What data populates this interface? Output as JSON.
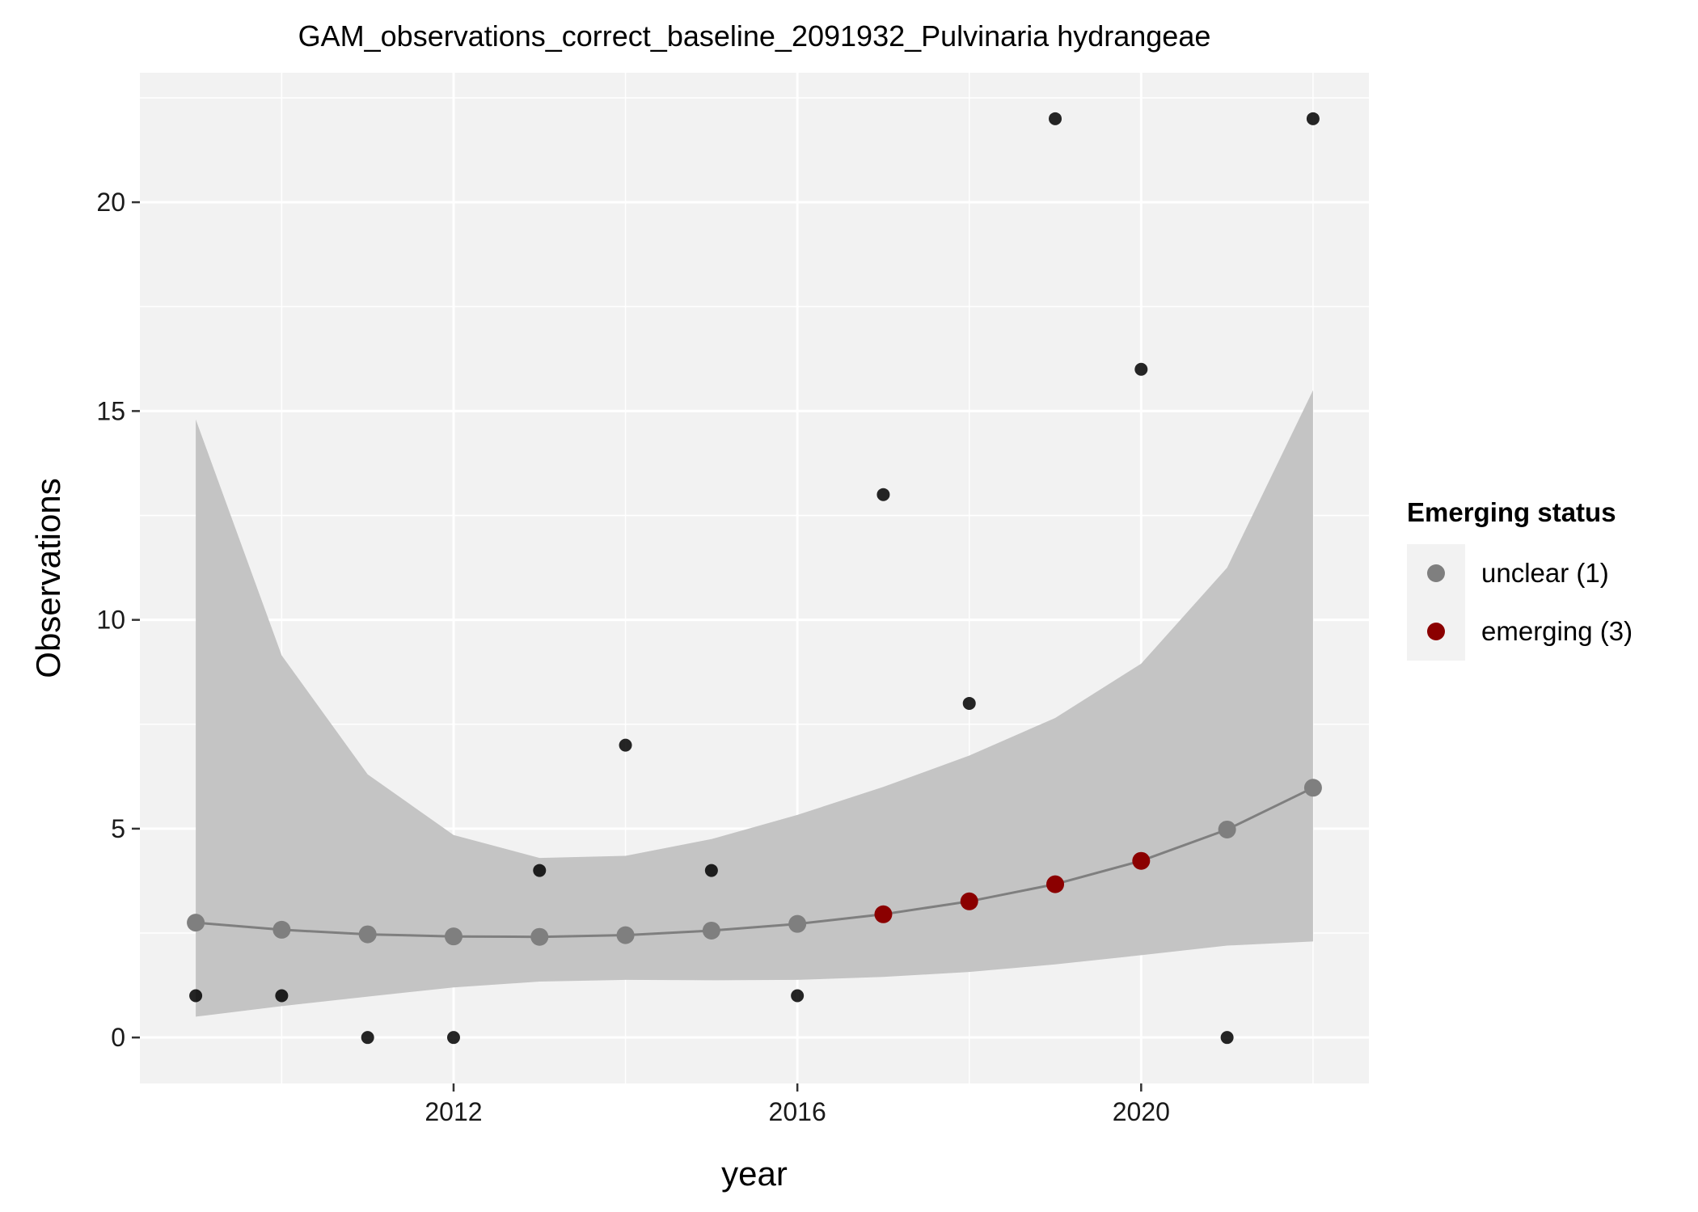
{
  "chart_data": {
    "type": "scatter",
    "title": "GAM_observations_correct_baseline_2091932_Pulvinaria hydrangeae",
    "xlabel": "year",
    "ylabel": "Observations",
    "xlim": [
      2008.35,
      2022.65
    ],
    "ylim": [
      -1.1,
      23.1
    ],
    "x_ticks": [
      2012,
      2016,
      2020
    ],
    "y_ticks": [
      0,
      5,
      10,
      15,
      20
    ],
    "x_tick_labels": [
      "2012",
      "2016",
      "2020"
    ],
    "y_tick_labels": [
      "0",
      "5",
      "10",
      "15",
      "20"
    ],
    "grid": true,
    "legend_position": "right",
    "observations": {
      "x": [
        2009,
        2010,
        2011,
        2012,
        2013,
        2014,
        2015,
        2016,
        2017,
        2018,
        2019,
        2020,
        2021,
        2022
      ],
      "y": [
        1,
        1,
        0,
        0,
        4,
        7,
        4,
        1,
        13,
        8,
        22,
        16,
        0,
        22
      ]
    },
    "gam_fit": {
      "x": [
        2009,
        2010,
        2011,
        2012,
        2013,
        2014,
        2015,
        2016,
        2017,
        2018,
        2019,
        2020,
        2021,
        2022
      ],
      "y": [
        2.75,
        2.58,
        2.47,
        2.42,
        2.41,
        2.45,
        2.56,
        2.72,
        2.95,
        3.26,
        3.67,
        4.23,
        4.98,
        5.98
      ],
      "lower": [
        0.5,
        0.75,
        0.98,
        1.2,
        1.34,
        1.38,
        1.37,
        1.38,
        1.45,
        1.57,
        1.75,
        1.97,
        2.2,
        2.3
      ],
      "upper": [
        14.8,
        9.15,
        6.3,
        4.85,
        4.3,
        4.35,
        4.75,
        5.33,
        6.0,
        6.75,
        7.65,
        8.95,
        11.25,
        15.5
      ],
      "status": [
        "unclear (1)",
        "unclear (1)",
        "unclear (1)",
        "unclear (1)",
        "unclear (1)",
        "unclear (1)",
        "unclear (1)",
        "unclear (1)",
        "emerging (3)",
        "emerging (3)",
        "emerging (3)",
        "emerging (3)",
        "unclear (1)",
        "unclear (1)"
      ]
    },
    "legend": {
      "title": "Emerging status",
      "entries": [
        {
          "label": "unclear (1)",
          "color": "#7f7f7f"
        },
        {
          "label": "emerging (3)",
          "color": "#8b0000"
        }
      ]
    },
    "colors": {
      "panel": "#f2f2f2",
      "grid": "#ffffff",
      "ribbon": "#c4c4c4",
      "fit_line": "#7f7f7f",
      "observation": "#000000"
    }
  }
}
